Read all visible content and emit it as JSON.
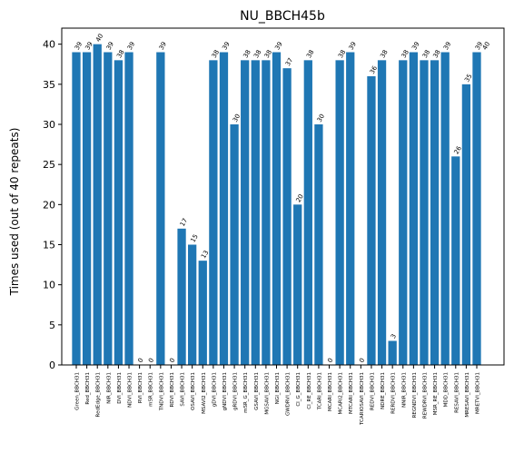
{
  "chart_data": {
    "type": "bar",
    "title": "NU_BBCH45b",
    "xlabel": "",
    "ylabel": "Times used (out of 40 repeats)",
    "ylim": [
      0,
      42
    ],
    "yticks": [
      0,
      5,
      10,
      15,
      20,
      25,
      30,
      35,
      40
    ],
    "grid": false,
    "bar_color": "#1f77b4",
    "categories": [
      "Green_BBCH31",
      "Red_BBCH31",
      "RedEdge_BBCH31",
      "NIR_BBCH31",
      "DVI_BBCH31",
      "NDVI_BBCH31",
      "RVI_BBCH31",
      "mSR_BBCH31",
      "TNDVI_BBCH31",
      "RDVI_BBCH31",
      "SAVI_BBCH31",
      "OSAVI_BBCH31",
      "MSAVI2_BBCH31",
      "gDVI_BBCH31",
      "gNDVI_BBCH31",
      "gRDVI_BBCH31",
      "mSR_G_BBCH31",
      "GSAVI_BBCH31",
      "MGSAVI_BBCH31",
      "NGI_BBCH31",
      "GWDRVI_BBCH31",
      "CI_G_BBCH31",
      "CI_RE_BBCH31",
      "TCARI_BBCH31",
      "MCARI_BBCH31",
      "MCARI2_BBCH31",
      "MTCARI_BBCH31",
      "TCARIOSAVI_BBCH31",
      "REDVI_BBCH31",
      "NDRE_BBCH31",
      "RERDVI_BBCH31",
      "NNIR_BBCH31",
      "REGNDVI_BBCH31",
      "REWDRVI_BBCH31",
      "MSR_RE_BBCH31",
      "MDD_BBCH31",
      "RESAVI_BBCH31",
      "MRESAVI_BBCH31",
      "MRETVI_BBCH31"
    ],
    "values": [
      39,
      39,
      40,
      39,
      38,
      39,
      0,
      0,
      39,
      0,
      17,
      15,
      13,
      38,
      39,
      30,
      38,
      38,
      38,
      39,
      37,
      20,
      38,
      30,
      0,
      38,
      39,
      0,
      36,
      38,
      3,
      38,
      39,
      38,
      38,
      39,
      26,
      35,
      39
    ],
    "data_labels": [
      "39",
      "39",
      "40",
      "39",
      "38",
      "39",
      "0",
      "0",
      "39",
      "0",
      "17",
      "15",
      "13",
      "38",
      "39",
      "30",
      "38",
      "38",
      "38",
      "39",
      "37",
      "20",
      "38",
      "30",
      "0",
      "38",
      "39",
      "0",
      "36",
      "38",
      "3",
      "38",
      "39",
      "38",
      "38",
      "39",
      "26",
      "35",
      "39"
    ],
    "extra_annotation": "40"
  }
}
